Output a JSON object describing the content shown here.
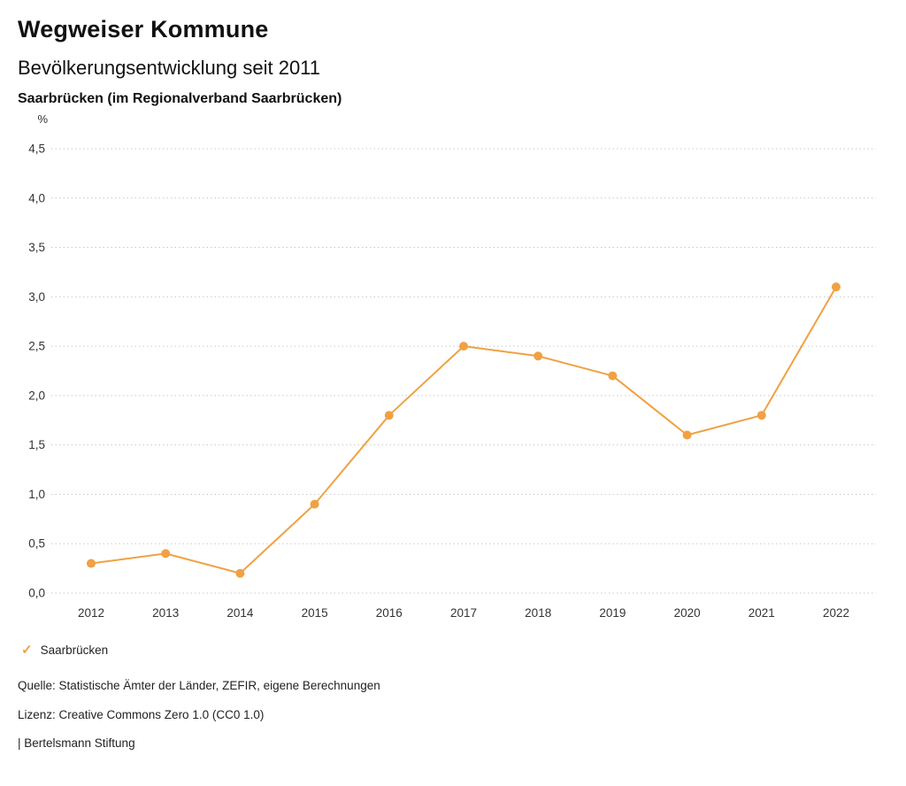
{
  "header": {
    "title": "Wegweiser Kommune",
    "subtitle": "Bevölkerungsentwicklung seit 2011",
    "region": "Saarbrücken (im Regionalverband Saarbrücken)"
  },
  "chart_data": {
    "type": "line",
    "title": "Bevölkerungsentwicklung seit 2011",
    "region": "Saarbrücken (im Regionalverband Saarbrücken)",
    "unit": "%",
    "categories": [
      "2012",
      "2013",
      "2014",
      "2015",
      "2016",
      "2017",
      "2018",
      "2019",
      "2020",
      "2021",
      "2022"
    ],
    "series": [
      {
        "name": "Saarbrücken",
        "values": [
          0.3,
          0.4,
          0.2,
          0.9,
          1.8,
          2.5,
          2.4,
          2.2,
          1.6,
          1.8,
          3.1
        ],
        "color": "#F0A143"
      }
    ],
    "ylim": [
      0,
      4.5
    ],
    "y_tick_labels": [
      "0,0",
      "0,5",
      "1,0",
      "1,5",
      "2,0",
      "2,5",
      "3,0",
      "3,5",
      "4,0",
      "4,5"
    ],
    "xlabel": "",
    "ylabel": "%",
    "grid": "horizontal-dotted",
    "legend_position": "bottom-left"
  },
  "legend": {
    "check_icon": "✓",
    "label": "Saarbrücken"
  },
  "footer": {
    "source": "Quelle: Statistische Ämter der Länder, ZEFIR, eigene Berechnungen",
    "license": "Lizenz: Creative Commons Zero 1.0 (CC0 1.0)",
    "attribution": "| Bertelsmann Stiftung"
  }
}
